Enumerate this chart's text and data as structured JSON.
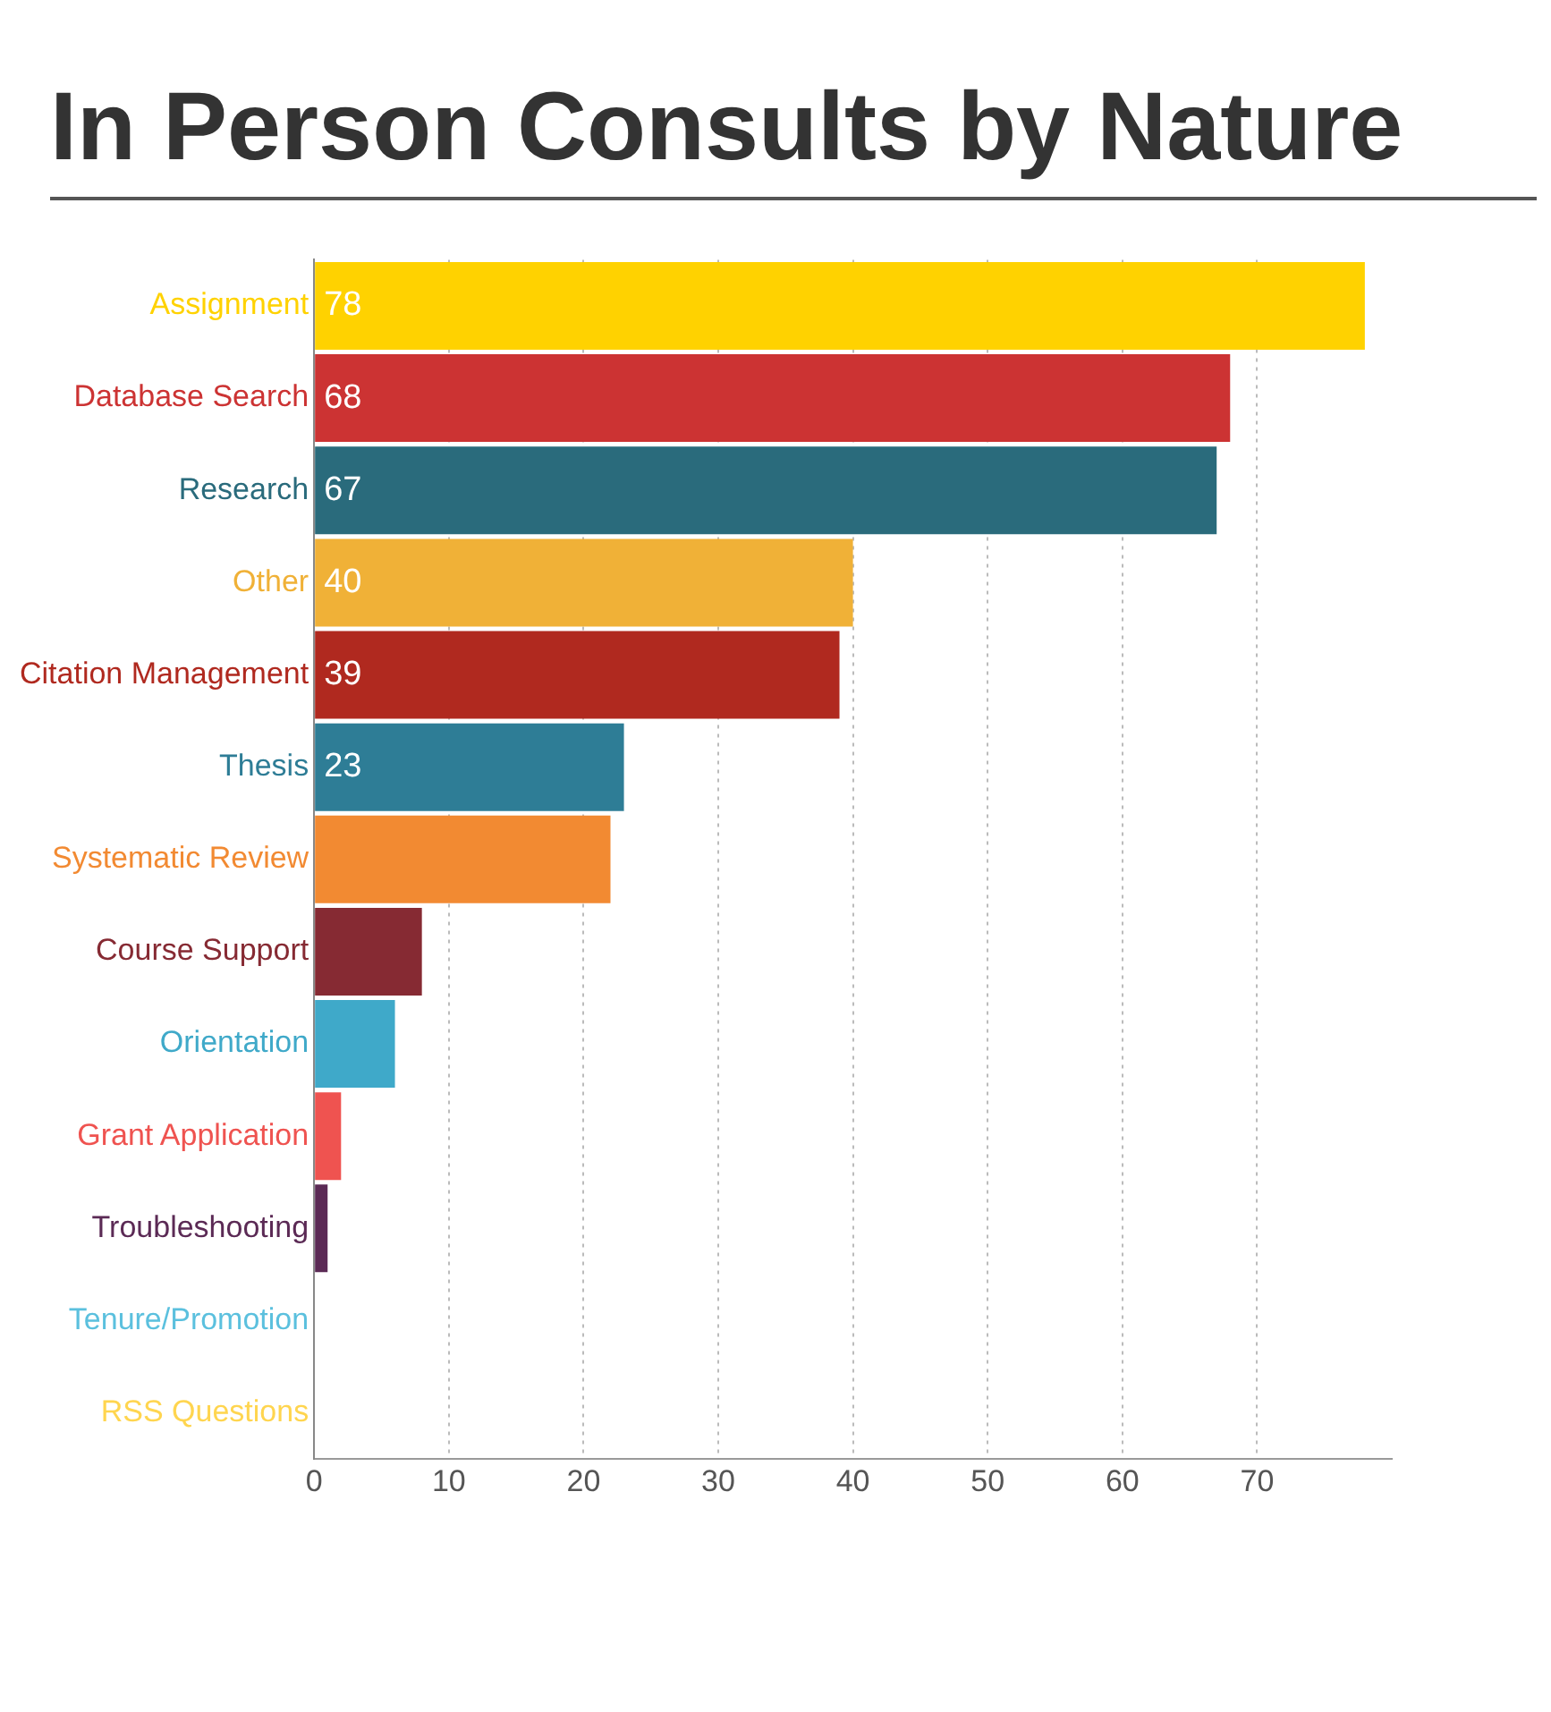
{
  "chart_data": {
    "type": "bar",
    "orientation": "horizontal",
    "title": "In Person Consults by Nature",
    "categories": [
      "Assignment",
      "Database Search",
      "Research",
      "Other",
      "Citation Management",
      "Thesis",
      "Systematic Review",
      "Course Support",
      "Orientation",
      "Grant Application",
      "Troubleshooting",
      "Tenure/Promotion",
      "RSS Questions"
    ],
    "values": [
      78,
      68,
      67,
      40,
      39,
      23,
      22,
      8,
      6,
      2,
      1,
      0,
      0
    ],
    "value_labels": [
      "78",
      "68",
      "67",
      "40",
      "39",
      "23",
      null,
      null,
      null,
      null,
      null,
      null,
      null
    ],
    "colors": [
      "#ffd200",
      "#cc3333",
      "#2a6b7c",
      "#f0b137",
      "#b0291f",
      "#2e7d96",
      "#f28a32",
      "#862a33",
      "#3fa9c9",
      "#ef5350",
      "#5b2a55",
      "#5bc0de",
      "#ffd54f"
    ],
    "xlim": [
      0,
      80
    ],
    "xticks": [
      0,
      10,
      20,
      30,
      40,
      50,
      60,
      70
    ],
    "grid": "x"
  }
}
